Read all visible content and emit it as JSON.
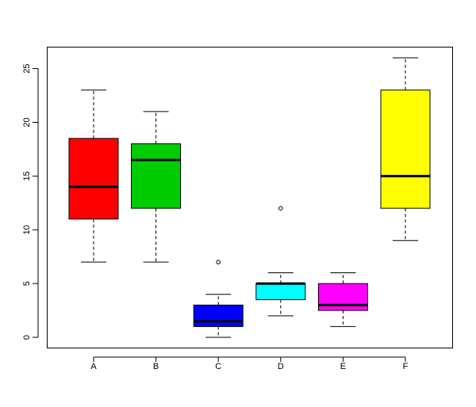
{
  "chart_data": {
    "type": "boxplot",
    "title": "",
    "xlabel": "",
    "ylabel": "",
    "ylim": [
      -1,
      27
    ],
    "y_ticks": [
      0,
      5,
      10,
      15,
      20,
      25
    ],
    "y_tick_labels": [
      "0",
      "5",
      "10",
      "15",
      "20",
      "25"
    ],
    "grid": false,
    "categories": [
      "A",
      "B",
      "C",
      "D",
      "E",
      "F"
    ],
    "boxes": [
      {
        "label": "A",
        "color": "#ff0000",
        "whisker_low": 7,
        "q1": 11,
        "median": 14,
        "q3": 18.5,
        "whisker_high": 23,
        "outliers": []
      },
      {
        "label": "B",
        "color": "#00cd00",
        "whisker_low": 7,
        "q1": 12,
        "median": 16.5,
        "q3": 18,
        "whisker_high": 21,
        "outliers": []
      },
      {
        "label": "C",
        "color": "#0000ff",
        "whisker_low": 0,
        "q1": 1,
        "median": 1.5,
        "q3": 3,
        "whisker_high": 4,
        "outliers": [
          7
        ]
      },
      {
        "label": "D",
        "color": "#00ffff",
        "whisker_low": 2,
        "q1": 3.5,
        "median": 5,
        "q3": 5,
        "whisker_high": 6,
        "outliers": [
          12
        ]
      },
      {
        "label": "E",
        "color": "#ff00ff",
        "whisker_low": 1,
        "q1": 2.5,
        "median": 3,
        "q3": 5,
        "whisker_high": 6,
        "outliers": []
      },
      {
        "label": "F",
        "color": "#ffff00",
        "whisker_low": 9,
        "q1": 12,
        "median": 15,
        "q3": 23,
        "whisker_high": 26,
        "outliers": []
      }
    ]
  }
}
